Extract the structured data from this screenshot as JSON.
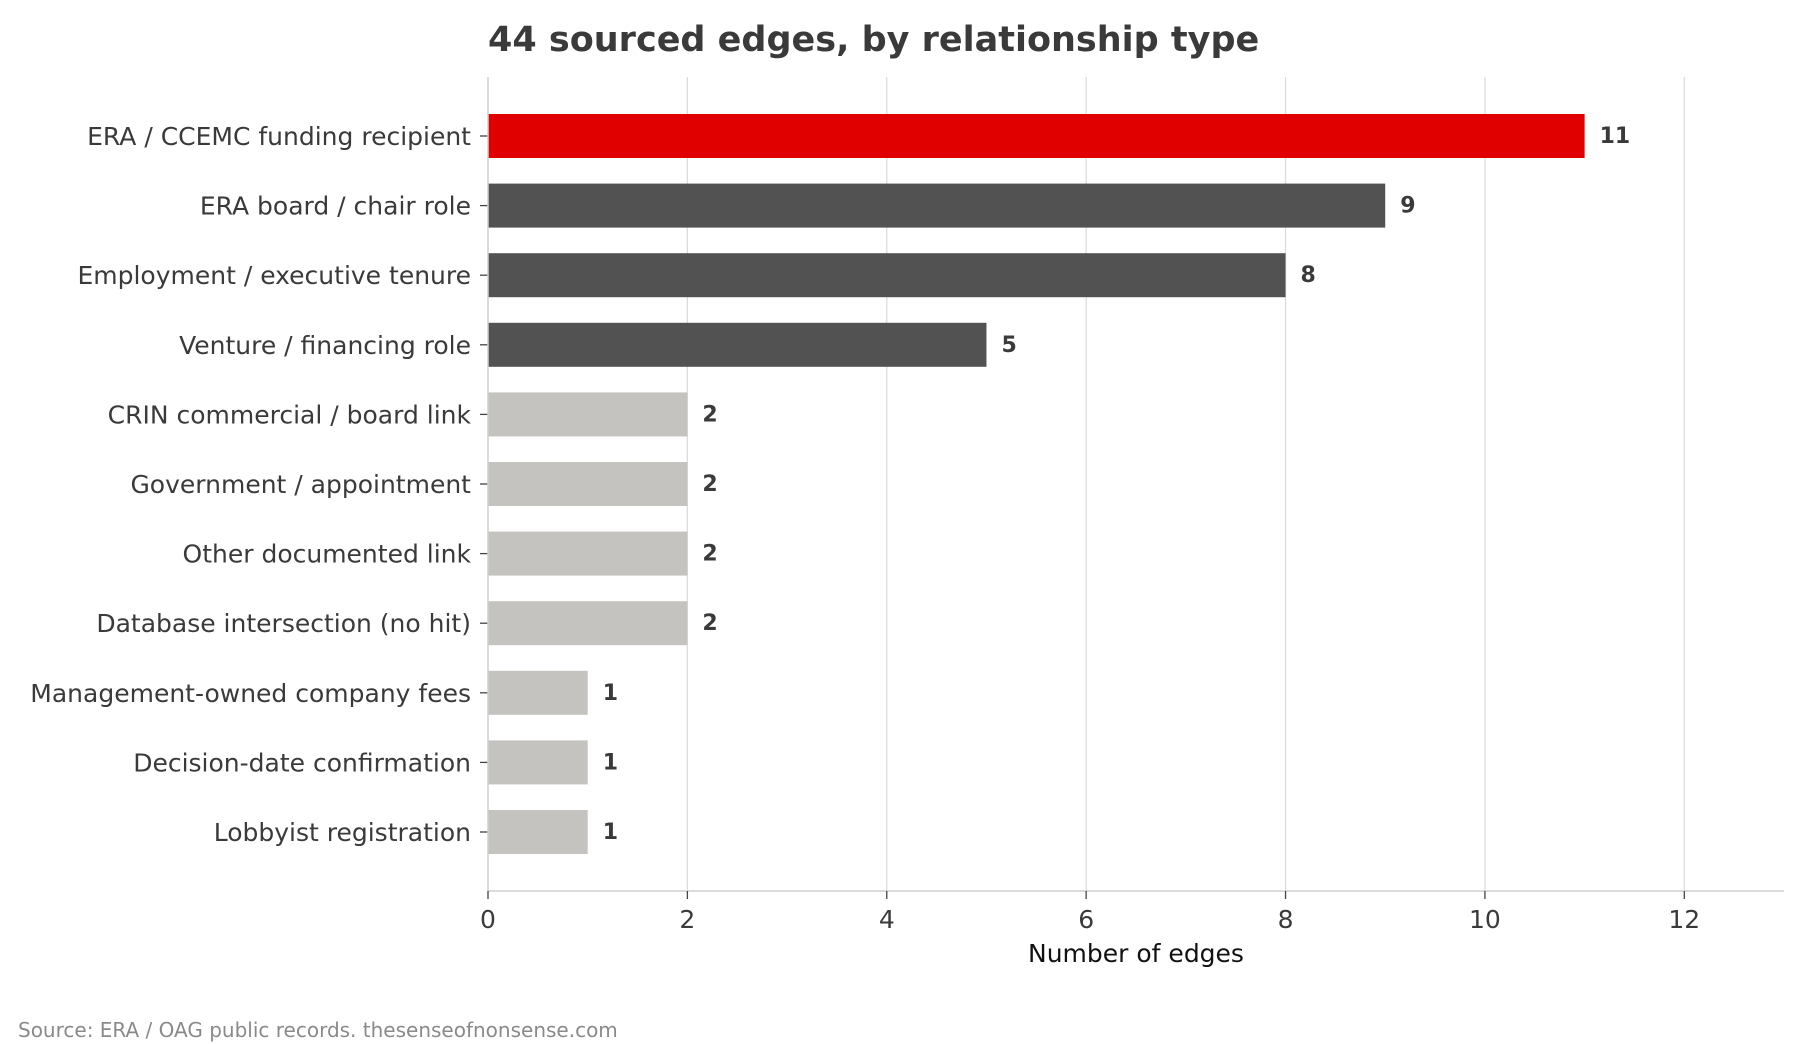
{
  "chart_data": {
    "type": "bar",
    "orientation": "horizontal",
    "title": "44 sourced edges, by relationship type",
    "xlabel": "Number of edges",
    "ylabel": "",
    "xlim": [
      0,
      13
    ],
    "x_ticks": [
      0,
      2,
      4,
      6,
      8,
      10,
      12
    ],
    "grid": "vertical",
    "legend": "none",
    "categories": [
      "ERA / CCEMC funding recipient",
      "ERA board / chair role",
      "Employment / executive tenure",
      "Venture / financing role",
      "CRIN commercial / board link",
      "Government / appointment",
      "Other documented link",
      "Database intersection (no hit)",
      "Management-owned company fees",
      "Decision-date confirmation",
      "Lobbyist registration"
    ],
    "values": [
      11,
      9,
      8,
      5,
      2,
      2,
      2,
      2,
      1,
      1,
      1
    ],
    "bar_colors": [
      "#e00000",
      "#525252",
      "#525252",
      "#525252",
      "#c4c3bf",
      "#c4c3bf",
      "#c4c3bf",
      "#c4c3bf",
      "#c4c3bf",
      "#c4c3bf",
      "#c4c3bf"
    ],
    "source": "Source: ERA / OAG public records. thesenseofnonsense.com"
  }
}
